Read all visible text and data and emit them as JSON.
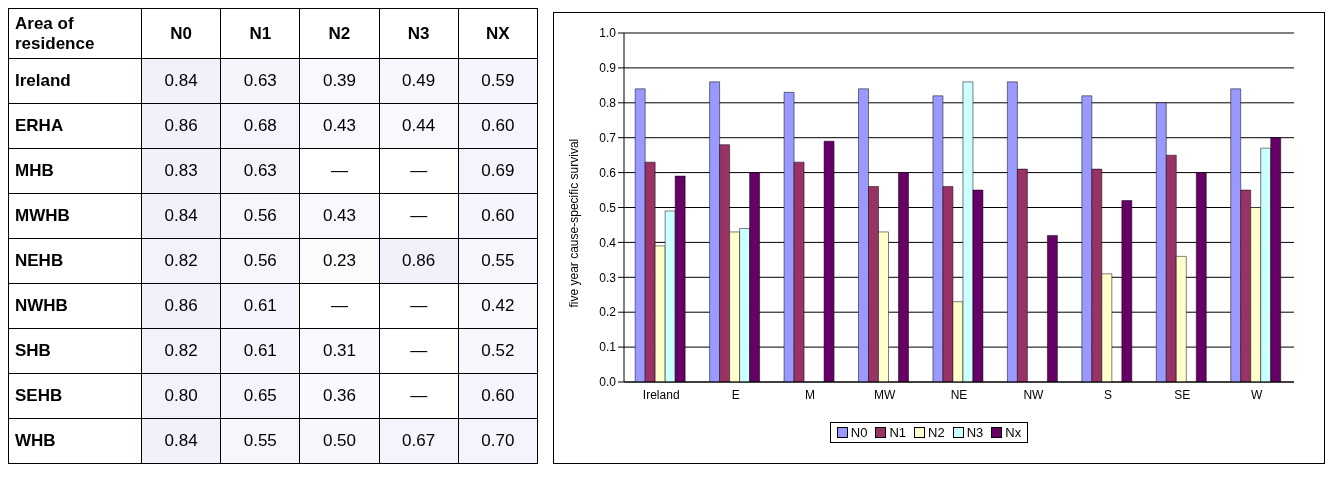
{
  "chart_data": [
    {
      "type": "heatmap",
      "ylabel": "Area of residence",
      "categories": [
        "N0",
        "N1",
        "N2",
        "N3",
        "NX"
      ],
      "y_categories": [
        "Ireland",
        "ERHA",
        "MHB",
        "MWHB",
        "NEHB",
        "NWHB",
        "SHB",
        "SEHB",
        "WHB"
      ],
      "cells": [
        [
          0.84,
          0.63,
          0.39,
          0.49,
          0.59
        ],
        [
          0.86,
          0.68,
          0.43,
          0.44,
          0.6
        ],
        [
          0.83,
          0.63,
          null,
          null,
          0.69
        ],
        [
          0.84,
          0.56,
          0.43,
          null,
          0.6
        ],
        [
          0.82,
          0.56,
          0.23,
          0.86,
          0.55
        ],
        [
          0.86,
          0.61,
          null,
          null,
          0.42
        ],
        [
          0.82,
          0.61,
          0.31,
          null,
          0.52
        ],
        [
          0.8,
          0.65,
          0.36,
          null,
          0.6
        ],
        [
          0.84,
          0.55,
          0.5,
          0.67,
          0.7
        ]
      ],
      "cell_labels": [
        [
          "0.84",
          "0.63",
          "0.39",
          "0.49",
          "0.59"
        ],
        [
          "0.86",
          "0.68",
          "0.43",
          "0.44",
          "0.60"
        ],
        [
          "0.83",
          "0.63",
          "—",
          "—",
          "0.69"
        ],
        [
          "0.84",
          "0.56",
          "0.43",
          "—",
          "0.60"
        ],
        [
          "0.82",
          "0.56",
          "0.23",
          "0.86",
          "0.55"
        ],
        [
          "0.86",
          "0.61",
          "—",
          "—",
          "0.42"
        ],
        [
          "0.82",
          "0.61",
          "0.31",
          "—",
          "0.52"
        ],
        [
          "0.80",
          "0.65",
          "0.36",
          "—",
          "0.60"
        ],
        [
          "0.84",
          "0.55",
          "0.50",
          "0.67",
          "0.70"
        ]
      ]
    },
    {
      "type": "bar",
      "categories": [
        "Ireland",
        "E",
        "M",
        "MW",
        "NE",
        "NW",
        "S",
        "SE",
        "W"
      ],
      "ylabel": "five year cause-specific survival",
      "ylim": [
        0,
        1
      ],
      "yticks": [
        {
          "value": 0,
          "label": "0.0"
        },
        0.1,
        0.2,
        0.3,
        0.4,
        0.5,
        0.6,
        0.7,
        0.8,
        0.9,
        {
          "value": 1,
          "label": "1.0"
        }
      ],
      "grid": "y",
      "legend": "bottom",
      "series": [
        {
          "name": "N0",
          "color": "#9999ff",
          "values": [
            0.84,
            0.86,
            0.83,
            0.84,
            0.82,
            0.86,
            0.82,
            0.8,
            0.84
          ]
        },
        {
          "name": "N1",
          "color": "#993366",
          "values": [
            0.63,
            0.68,
            0.63,
            0.56,
            0.56,
            0.61,
            0.61,
            0.65,
            0.55
          ]
        },
        {
          "name": "N2",
          "color": "#ffffcc",
          "values": [
            0.39,
            0.43,
            null,
            0.43,
            0.23,
            null,
            0.31,
            0.36,
            0.5
          ]
        },
        {
          "name": "N3",
          "color": "#ccffff",
          "values": [
            0.49,
            0.44,
            null,
            null,
            0.86,
            null,
            null,
            null,
            0.67
          ]
        },
        {
          "name": "Nx",
          "color": "#660066",
          "values": [
            0.59,
            0.6,
            0.69,
            0.6,
            0.55,
            0.42,
            0.52,
            0.6,
            0.7
          ]
        }
      ]
    }
  ]
}
